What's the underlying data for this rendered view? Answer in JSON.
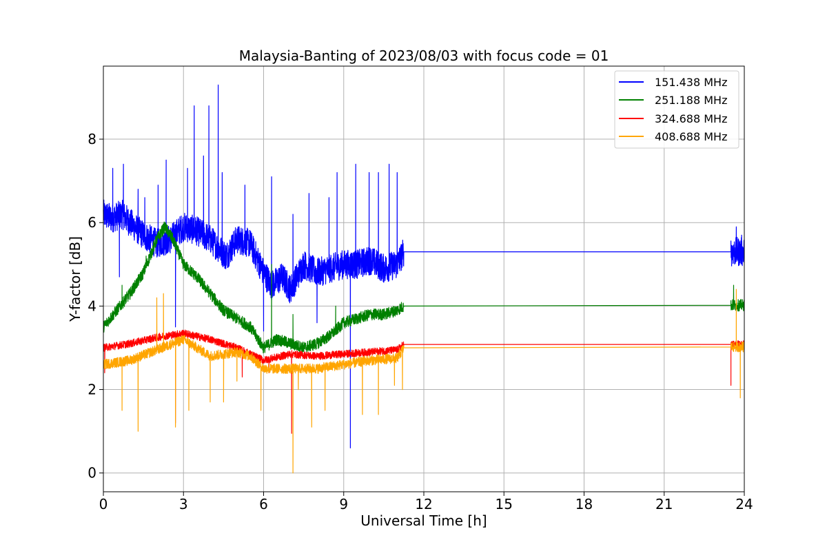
{
  "chart_data": {
    "type": "line",
    "title": "Malaysia-Banting of 2023/08/03 with focus code = 01",
    "xlabel": "Universal Time [h]",
    "ylabel": "Y-factor [dB]",
    "xlim": [
      0,
      24
    ],
    "ylim": [
      -0.45,
      9.75
    ],
    "xticks": [
      0,
      3,
      6,
      9,
      12,
      15,
      18,
      21,
      24
    ],
    "yticks": [
      0,
      2,
      4,
      6,
      8
    ],
    "xtick_labels": [
      "0",
      "3",
      "6",
      "9",
      "12",
      "15",
      "18",
      "21",
      "24"
    ],
    "ytick_labels": [
      "0",
      "2",
      "4",
      "6",
      "8"
    ],
    "grid": true,
    "legend_position": "top-right",
    "series": [
      {
        "name": "151.438 MHz",
        "color": "#0000ff",
        "noise": 0.35,
        "x": [
          0,
          0.3,
          0.7,
          1.0,
          1.5,
          2.0,
          2.5,
          3.0,
          3.5,
          4.0,
          4.3,
          4.6,
          5.0,
          5.5,
          6.0,
          6.3,
          6.7,
          7.0,
          7.5,
          8.0,
          8.5,
          9.0,
          9.5,
          10.0,
          10.5,
          11.0,
          11.25,
          23.5,
          24.0
        ],
        "y": [
          6.2,
          6.1,
          6.2,
          6.0,
          5.7,
          5.5,
          5.6,
          5.9,
          5.8,
          5.6,
          5.4,
          5.2,
          5.6,
          5.5,
          4.8,
          4.5,
          4.7,
          4.4,
          5.0,
          4.8,
          4.9,
          5.0,
          5.0,
          5.1,
          4.9,
          5.0,
          5.3,
          5.3,
          5.3
        ],
        "spikes": [
          [
            0.35,
            7.3
          ],
          [
            0.6,
            4.7
          ],
          [
            0.75,
            7.4
          ],
          [
            1.3,
            6.8
          ],
          [
            1.55,
            6.6
          ],
          [
            2.05,
            6.9
          ],
          [
            2.35,
            7.5
          ],
          [
            2.7,
            3.5
          ],
          [
            3.15,
            7.3
          ],
          [
            3.4,
            8.8
          ],
          [
            3.75,
            7.6
          ],
          [
            3.95,
            8.8
          ],
          [
            4.3,
            9.3
          ],
          [
            4.45,
            7.2
          ],
          [
            5.3,
            6.9
          ],
          [
            6.0,
            3.4
          ],
          [
            6.3,
            7.1
          ],
          [
            7.1,
            6.2
          ],
          [
            7.7,
            6.7
          ],
          [
            8.0,
            3.6
          ],
          [
            8.45,
            6.6
          ],
          [
            8.75,
            7.2
          ],
          [
            9.25,
            0.6
          ],
          [
            9.45,
            7.4
          ],
          [
            9.95,
            7.2
          ],
          [
            10.3,
            7.2
          ],
          [
            10.7,
            7.4
          ],
          [
            11.0,
            7.2
          ],
          [
            23.7,
            5.9
          ],
          [
            23.9,
            5.7
          ]
        ]
      },
      {
        "name": "251.188 MHz",
        "color": "#008000",
        "noise": 0.14,
        "x": [
          0,
          0.5,
          1.0,
          1.5,
          2.0,
          2.3,
          2.6,
          3.0,
          3.5,
          4.0,
          4.5,
          5.0,
          5.5,
          6.0,
          6.5,
          7.0,
          7.5,
          8.0,
          8.5,
          9.0,
          9.5,
          10.0,
          10.5,
          11.0,
          11.25,
          23.5,
          24.0
        ],
        "y": [
          3.5,
          3.9,
          4.3,
          4.8,
          5.6,
          5.9,
          5.6,
          5.0,
          4.7,
          4.3,
          3.9,
          3.7,
          3.5,
          3.0,
          3.2,
          3.1,
          3.0,
          3.1,
          3.3,
          3.6,
          3.7,
          3.8,
          3.8,
          3.9,
          4.0,
          4.02,
          4.02
        ],
        "spikes": [
          [
            0.7,
            4.5
          ],
          [
            1.6,
            5.2
          ],
          [
            6.3,
            5.0
          ],
          [
            7.1,
            3.8
          ],
          [
            8.7,
            4.0
          ],
          [
            23.6,
            4.5
          ]
        ]
      },
      {
        "name": "324.688 MHz",
        "color": "#ff0000",
        "noise": 0.09,
        "x": [
          0,
          1.0,
          2.0,
          3.0,
          4.0,
          5.0,
          6.0,
          7.0,
          8.0,
          9.0,
          10.0,
          11.0,
          11.25,
          23.5,
          24.0
        ],
        "y": [
          3.0,
          3.1,
          3.25,
          3.35,
          3.2,
          3.0,
          2.7,
          2.85,
          2.8,
          2.85,
          2.9,
          2.95,
          3.08,
          3.08,
          3.08
        ],
        "spikes": [
          [
            0.05,
            2.4
          ],
          [
            2.7,
            1.2
          ],
          [
            5.2,
            2.3
          ],
          [
            6.2,
            2.4
          ],
          [
            7.05,
            0.95
          ],
          [
            23.5,
            2.1
          ]
        ]
      },
      {
        "name": "408.688 MHz",
        "color": "#ffa500",
        "noise": 0.12,
        "x": [
          0,
          1.0,
          2.0,
          3.0,
          3.5,
          4.0,
          5.0,
          5.5,
          6.0,
          7.0,
          8.0,
          9.0,
          10.0,
          11.0,
          11.25,
          23.5,
          24.0
        ],
        "y": [
          2.6,
          2.7,
          2.95,
          3.2,
          3.0,
          2.8,
          2.9,
          2.8,
          2.5,
          2.5,
          2.5,
          2.6,
          2.7,
          2.75,
          3.0,
          3.02,
          3.02
        ],
        "spikes": [
          [
            0.7,
            1.5
          ],
          [
            1.3,
            1.0
          ],
          [
            2.0,
            4.2
          ],
          [
            2.25,
            4.3
          ],
          [
            2.7,
            1.1
          ],
          [
            3.2,
            1.5
          ],
          [
            4.0,
            1.7
          ],
          [
            4.5,
            1.7
          ],
          [
            5.0,
            2.2
          ],
          [
            5.9,
            1.5
          ],
          [
            7.1,
            0.0
          ],
          [
            7.3,
            2.0
          ],
          [
            7.8,
            1.1
          ],
          [
            8.3,
            1.5
          ],
          [
            9.7,
            1.4
          ],
          [
            10.3,
            1.4
          ],
          [
            10.9,
            2.1
          ],
          [
            11.2,
            2.0
          ],
          [
            23.7,
            4.4
          ],
          [
            23.85,
            1.8
          ]
        ]
      }
    ]
  }
}
